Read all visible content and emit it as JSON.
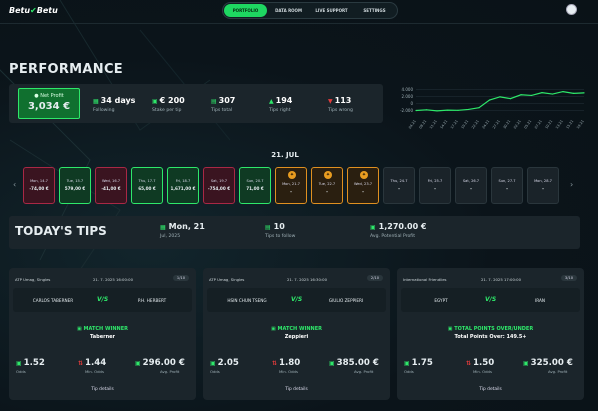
{
  "app": {
    "logo_left": "Betu",
    "logo_check": "✔",
    "logo_right": "Betu"
  },
  "nav": {
    "items": [
      "PORTFOLIO",
      "DATA ROOM",
      "LIVE SUPPORT",
      "SETTINGS"
    ],
    "active": 0
  },
  "performance": {
    "title": "PERFORMANCE",
    "net_profit_label": "Net Profit",
    "net_profit_value": "3,034 €",
    "stats": [
      {
        "value": "34 days",
        "label": "Following",
        "icon": "calendar-icon"
      },
      {
        "value": "€ 200",
        "label": "Stake per tip",
        "icon": "money-icon"
      },
      {
        "value": "307",
        "label": "Tips total",
        "icon": "chart-icon"
      },
      {
        "value": "194",
        "label": "Tips right",
        "icon": "thumbs-up-icon"
      },
      {
        "value": "113",
        "label": "Tips wrong",
        "icon": "thumbs-down-icon"
      }
    ]
  },
  "chart_data": {
    "type": "line",
    "y_ticks": [
      "4.000",
      "2.000",
      "0",
      "-2.000"
    ],
    "ylim": [
      -3000,
      5000
    ],
    "x": [
      "04.21",
      "08.21",
      "11.21",
      "14.21",
      "17.21",
      "19.21",
      "22.21",
      "24.21",
      "27.21",
      "30.21",
      "02.21",
      "05.21",
      "07.21",
      "10.21",
      "13.21",
      "15.21",
      "19.21"
    ],
    "values": [
      -2000,
      -1800,
      -2100,
      -1900,
      -1950,
      -1700,
      -1200,
      1000,
      1900,
      1400,
      2500,
      2300,
      3100,
      2700,
      3400,
      2900,
      3034
    ],
    "color": "#2ee86a"
  },
  "calendar": {
    "date": "21. JUL",
    "days": [
      {
        "date": "Mon, 14.7",
        "profit": "-74,00 €",
        "state": "red"
      },
      {
        "date": "Tue, 15.7",
        "profit": "579,00 €",
        "state": "green"
      },
      {
        "date": "Wed, 16.7",
        "profit": "-41,00 €",
        "state": "red"
      },
      {
        "date": "Thu, 17.7",
        "profit": "65,00 €",
        "state": "green"
      },
      {
        "date": "Fri, 18.7",
        "profit": "1,671,00 €",
        "state": "green"
      },
      {
        "date": "Sat, 19.7",
        "profit": "-754,00 €",
        "state": "red"
      },
      {
        "date": "Sun, 20.7",
        "profit": "71,00 €",
        "state": "green"
      },
      {
        "date": "Mon, 21.7",
        "profit": "–",
        "state": "orange"
      },
      {
        "date": "Tue, 22.7",
        "profit": "–",
        "state": "orange"
      },
      {
        "date": "Wed, 23.7",
        "profit": "–",
        "state": "orange"
      },
      {
        "date": "Thu, 24.7",
        "profit": "–",
        "state": "grey"
      },
      {
        "date": "Fri, 25.7",
        "profit": "–",
        "state": "grey"
      },
      {
        "date": "Sat, 26.7",
        "profit": "–",
        "state": "grey"
      },
      {
        "date": "Sun, 27.7",
        "profit": "–",
        "state": "grey"
      },
      {
        "date": "Mon, 28.7",
        "profit": "–",
        "state": "grey"
      }
    ],
    "prev": "‹",
    "next": "›"
  },
  "todays_tips": {
    "title": "TODAY'S TIPS",
    "date_value": "Mon, 21",
    "date_label": "Jul, 2025",
    "follow_value": "10",
    "follow_label": "Tips to follow",
    "profit_value": "1,270.00 €",
    "profit_label": "Avg. Potential Profit"
  },
  "cards": [
    {
      "league": "ATP Umag, Singles",
      "time": "21. 7. 2025 16:00:00",
      "badge": "1/10",
      "team1": "CARLOS TABERNER",
      "team2": "P.H. HERBERT",
      "market": "MATCH WINNER",
      "pick": "Taberner",
      "odds": "1.52",
      "min_odds": "1.44",
      "profit": "296.00 €",
      "odds_label": "Odds",
      "min_label": "Min. Odds",
      "profit_label": "Avg. Profit",
      "details": "Tip details"
    },
    {
      "league": "ATP Umag, Singles",
      "time": "21. 7. 2025 16:30:00",
      "badge": "2/10",
      "team1": "HSIN CHUN TSENG",
      "team2": "GIULIO ZEPPIERI",
      "market": "MATCH WINNER",
      "pick": "Zeppieri",
      "odds": "2.05",
      "min_odds": "1.80",
      "profit": "385.00 €",
      "odds_label": "Odds",
      "min_label": "Min. Odds",
      "profit_label": "Avg. Profit",
      "details": "Tip details"
    },
    {
      "league": "International Friendlies",
      "time": "21. 7. 2025 17:00:00",
      "badge": "3/10",
      "team1": "EGYPT",
      "team2": "IRAN",
      "market": "TOTAL POINTS OVER/UNDER",
      "pick": "Total Points Over: 149.5+",
      "odds": "1.75",
      "min_odds": "1.50",
      "profit": "325.00 €",
      "odds_label": "Odds",
      "min_label": "Min. Odds",
      "profit_label": "Avg. Profit",
      "details": "Tip details"
    }
  ],
  "vs_text": "V/S"
}
